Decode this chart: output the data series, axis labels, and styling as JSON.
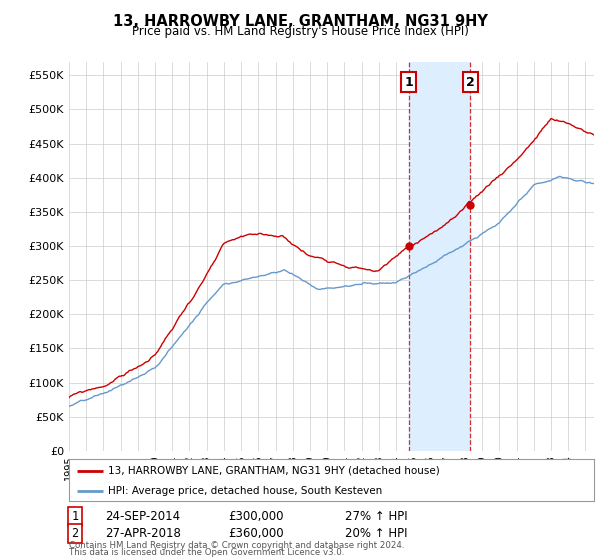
{
  "title": "13, HARROWBY LANE, GRANTHAM, NG31 9HY",
  "subtitle": "Price paid vs. HM Land Registry's House Price Index (HPI)",
  "ylabel_ticks": [
    "£0",
    "£50K",
    "£100K",
    "£150K",
    "£200K",
    "£250K",
    "£300K",
    "£350K",
    "£400K",
    "£450K",
    "£500K",
    "£550K"
  ],
  "ytick_values": [
    0,
    50000,
    100000,
    150000,
    200000,
    250000,
    300000,
    350000,
    400000,
    450000,
    500000,
    550000
  ],
  "ylim": [
    0,
    570000
  ],
  "xlim_start": 1995.0,
  "xlim_end": 2025.5,
  "sale1_x": 2014.73,
  "sale1_y": 300000,
  "sale1_label": "1",
  "sale1_date": "24-SEP-2014",
  "sale1_price": "£300,000",
  "sale1_hpi": "27% ↑ HPI",
  "sale2_x": 2018.32,
  "sale2_y": 360000,
  "sale2_label": "2",
  "sale2_date": "27-APR-2018",
  "sale2_price": "£360,000",
  "sale2_hpi": "20% ↑ HPI",
  "shaded_region_x1": 2014.73,
  "shaded_region_x2": 2018.32,
  "line1_color": "#cc0000",
  "line2_color": "#6699cc",
  "shaded_color": "#ddeeff",
  "grid_color": "#cccccc",
  "background_color": "#ffffff",
  "legend1_label": "13, HARROWBY LANE, GRANTHAM, NG31 9HY (detached house)",
  "legend2_label": "HPI: Average price, detached house, South Kesteven",
  "footer_line1": "Contains HM Land Registry data © Crown copyright and database right 2024.",
  "footer_line2": "This data is licensed under the Open Government Licence v3.0."
}
